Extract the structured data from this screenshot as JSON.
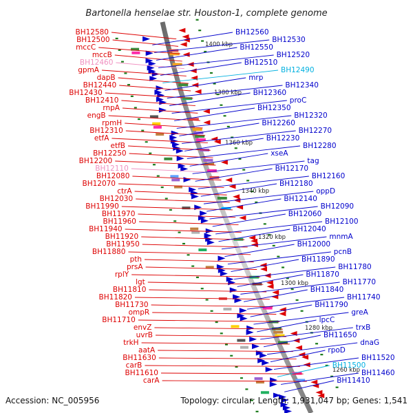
{
  "title": "Bartonella henselae str. Houston-1, complete genome",
  "footer": {
    "accession": "Accession: NC_005956",
    "summary": "Topology: circular; Length: 1,931,047 bp; Genes: 1,541"
  },
  "colors": {
    "backbone": "#8a8a8a",
    "reverse_strand": "#dd0000",
    "forward_strand": "#0000cc",
    "rna_forward": "#00b0e0",
    "pseudo_reverse": "#f090c0",
    "tick": "#1a7a1a"
  },
  "scale_labels": [
    "1400 kbp",
    "1380 kbp",
    "1360 kbp",
    "1340 kbp",
    "1320 kbp",
    "1300 kbp",
    "1280 kbp",
    "1260 kbp"
  ],
  "left_labels": [
    {
      "text": "BH12580",
      "color": "#dd0000"
    },
    {
      "text": "BH12500",
      "color": "#dd0000"
    },
    {
      "text": "mccC",
      "color": "#dd0000"
    },
    {
      "text": "mccB",
      "color": "#dd0000"
    },
    {
      "text": "BH12460",
      "color": "#f090c0"
    },
    {
      "text": "gpmA",
      "color": "#dd0000"
    },
    {
      "text": "dapB",
      "color": "#dd0000"
    },
    {
      "text": "BH12440",
      "color": "#dd0000"
    },
    {
      "text": "BH12430",
      "color": "#dd0000"
    },
    {
      "text": "BH12410",
      "color": "#dd0000"
    },
    {
      "text": "rnpA",
      "color": "#dd0000"
    },
    {
      "text": "engB",
      "color": "#dd0000"
    },
    {
      "text": "rpmH",
      "color": "#dd0000"
    },
    {
      "text": "BH12310",
      "color": "#dd0000"
    },
    {
      "text": "etfA",
      "color": "#dd0000"
    },
    {
      "text": "etfB",
      "color": "#dd0000"
    },
    {
      "text": "BH12250",
      "color": "#dd0000"
    },
    {
      "text": "BH12200",
      "color": "#dd0000"
    },
    {
      "text": "BH12110",
      "color": "#f090c0"
    },
    {
      "text": "BH12080",
      "color": "#dd0000"
    },
    {
      "text": "BH12070",
      "color": "#dd0000"
    },
    {
      "text": "ctrA",
      "color": "#dd0000"
    },
    {
      "text": "BH12030",
      "color": "#dd0000"
    },
    {
      "text": "BH11990",
      "color": "#dd0000"
    },
    {
      "text": "BH11970",
      "color": "#dd0000"
    },
    {
      "text": "BH11960",
      "color": "#dd0000"
    },
    {
      "text": "BH11940",
      "color": "#dd0000"
    },
    {
      "text": "BH11920",
      "color": "#dd0000"
    },
    {
      "text": "BH11950",
      "color": "#dd0000"
    },
    {
      "text": "BH11880",
      "color": "#dd0000"
    },
    {
      "text": "pth",
      "color": "#dd0000"
    },
    {
      "text": "prsA",
      "color": "#dd0000"
    },
    {
      "text": "rplY",
      "color": "#dd0000"
    },
    {
      "text": "lgt",
      "color": "#dd0000"
    },
    {
      "text": "BH11810",
      "color": "#dd0000"
    },
    {
      "text": "BH11820",
      "color": "#dd0000"
    },
    {
      "text": "BH11730",
      "color": "#dd0000"
    },
    {
      "text": "ompR",
      "color": "#dd0000"
    },
    {
      "text": "BH11710",
      "color": "#dd0000"
    },
    {
      "text": "envZ",
      "color": "#dd0000"
    },
    {
      "text": "uvrB",
      "color": "#dd0000"
    },
    {
      "text": "trkH",
      "color": "#dd0000"
    },
    {
      "text": "aatA",
      "color": "#dd0000"
    },
    {
      "text": "BH11630",
      "color": "#dd0000"
    },
    {
      "text": "carB",
      "color": "#dd0000"
    },
    {
      "text": "BH11610",
      "color": "#dd0000"
    },
    {
      "text": "carA",
      "color": "#dd0000"
    }
  ],
  "right_labels": [
    {
      "text": "BH12560",
      "color": "#0000cc"
    },
    {
      "text": "BH12530",
      "color": "#0000cc"
    },
    {
      "text": "BH12550",
      "color": "#0000cc"
    },
    {
      "text": "BH12520",
      "color": "#0000cc"
    },
    {
      "text": "BH12510",
      "color": "#0000cc"
    },
    {
      "text": "BH12490",
      "color": "#00b0e0"
    },
    {
      "text": "mrp",
      "color": "#0000cc"
    },
    {
      "text": "BH12340",
      "color": "#0000cc"
    },
    {
      "text": "BH12360",
      "color": "#0000cc"
    },
    {
      "text": "proC",
      "color": "#0000cc"
    },
    {
      "text": "BH12350",
      "color": "#0000cc"
    },
    {
      "text": "BH12320",
      "color": "#0000cc"
    },
    {
      "text": "BH12260",
      "color": "#0000cc"
    },
    {
      "text": "BH12270",
      "color": "#0000cc"
    },
    {
      "text": "BH12230",
      "color": "#0000cc"
    },
    {
      "text": "BH12280",
      "color": "#0000cc"
    },
    {
      "text": "xseA",
      "color": "#0000cc"
    },
    {
      "text": "tag",
      "color": "#0000cc"
    },
    {
      "text": "BH12170",
      "color": "#0000cc"
    },
    {
      "text": "BH12160",
      "color": "#0000cc"
    },
    {
      "text": "BH12180",
      "color": "#0000cc"
    },
    {
      "text": "oppD",
      "color": "#0000cc"
    },
    {
      "text": "BH12140",
      "color": "#0000cc"
    },
    {
      "text": "BH12090",
      "color": "#0000cc"
    },
    {
      "text": "BH12060",
      "color": "#0000cc"
    },
    {
      "text": "BH12100",
      "color": "#0000cc"
    },
    {
      "text": "BH12040",
      "color": "#0000cc"
    },
    {
      "text": "mnmA",
      "color": "#0000cc"
    },
    {
      "text": "BH12000",
      "color": "#0000cc"
    },
    {
      "text": "pcnB",
      "color": "#0000cc"
    },
    {
      "text": "BH11890",
      "color": "#0000cc"
    },
    {
      "text": "BH11780",
      "color": "#0000cc"
    },
    {
      "text": "BH11870",
      "color": "#0000cc"
    },
    {
      "text": "BH11770",
      "color": "#0000cc"
    },
    {
      "text": "BH11840",
      "color": "#0000cc"
    },
    {
      "text": "BH11740",
      "color": "#0000cc"
    },
    {
      "text": "BH11790",
      "color": "#0000cc"
    },
    {
      "text": "greA",
      "color": "#0000cc"
    },
    {
      "text": "lpcC",
      "color": "#0000cc"
    },
    {
      "text": "trxB",
      "color": "#0000cc"
    },
    {
      "text": "BH11650",
      "color": "#0000cc"
    },
    {
      "text": "dnaG",
      "color": "#0000cc"
    },
    {
      "text": "rpoD",
      "color": "#0000cc"
    },
    {
      "text": "BH11520",
      "color": "#0000cc"
    },
    {
      "text": "BH11500",
      "color": "#00b0e0"
    },
    {
      "text": "BH11460",
      "color": "#0000cc"
    },
    {
      "text": "BH11410",
      "color": "#0000cc"
    }
  ]
}
